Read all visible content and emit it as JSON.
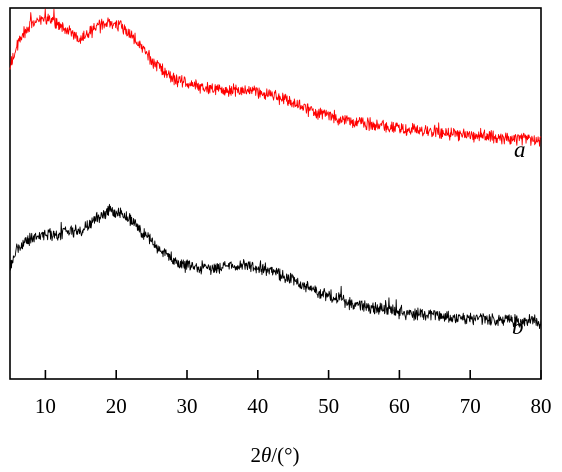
{
  "chart_data": {
    "type": "line",
    "xlabel": "2θ/(°)",
    "xlabel_parts": {
      "prefix": "2",
      "theta": "θ",
      "unit": "/(°)"
    },
    "ylabel": "",
    "xlim": [
      5,
      80
    ],
    "ylim": [
      0,
      1
    ],
    "x_ticks": [
      10,
      20,
      30,
      40,
      50,
      60,
      70,
      80
    ],
    "x_tick_labels": [
      "10",
      "20",
      "30",
      "40",
      "50",
      "60",
      "70",
      "80"
    ],
    "grid": false,
    "legend": "none",
    "series": [
      {
        "name": "a",
        "color": "#ff0000",
        "x": [
          5,
          6,
          7,
          8,
          9,
          10,
          11,
          12,
          13,
          14,
          15,
          16,
          17,
          18,
          19,
          20,
          21,
          22,
          23,
          24,
          25,
          26,
          27,
          28,
          30,
          32,
          34,
          36,
          38,
          40,
          42,
          44,
          46,
          48,
          50,
          52,
          55,
          58,
          60,
          62,
          65,
          68,
          70,
          72,
          75,
          78,
          80
        ],
        "y": [
          0.84,
          0.9,
          0.935,
          0.955,
          0.965,
          0.97,
          0.965,
          0.955,
          0.94,
          0.925,
          0.92,
          0.93,
          0.945,
          0.955,
          0.96,
          0.955,
          0.945,
          0.93,
          0.91,
          0.885,
          0.86,
          0.84,
          0.825,
          0.81,
          0.795,
          0.785,
          0.78,
          0.78,
          0.78,
          0.775,
          0.765,
          0.75,
          0.735,
          0.72,
          0.71,
          0.7,
          0.69,
          0.68,
          0.675,
          0.67,
          0.665,
          0.66,
          0.655,
          0.655,
          0.65,
          0.645,
          0.645
        ]
      },
      {
        "name": "b",
        "color": "#000000",
        "x": [
          5,
          6,
          7,
          8,
          9,
          10,
          11,
          12,
          13,
          14,
          15,
          16,
          17,
          18,
          19,
          20,
          21,
          22,
          23,
          24,
          25,
          26,
          27,
          28,
          30,
          32,
          34,
          36,
          38,
          40,
          42,
          44,
          46,
          48,
          50,
          52,
          55,
          58,
          60,
          62,
          65,
          68,
          70,
          72,
          75,
          78,
          80
        ],
        "y": [
          0.3,
          0.35,
          0.37,
          0.38,
          0.385,
          0.39,
          0.39,
          0.39,
          0.395,
          0.4,
          0.4,
          0.415,
          0.43,
          0.445,
          0.45,
          0.45,
          0.445,
          0.43,
          0.41,
          0.39,
          0.37,
          0.35,
          0.335,
          0.32,
          0.305,
          0.3,
          0.3,
          0.305,
          0.305,
          0.3,
          0.29,
          0.275,
          0.255,
          0.24,
          0.225,
          0.21,
          0.195,
          0.185,
          0.18,
          0.175,
          0.17,
          0.165,
          0.162,
          0.16,
          0.158,
          0.155,
          0.155
        ]
      }
    ]
  }
}
